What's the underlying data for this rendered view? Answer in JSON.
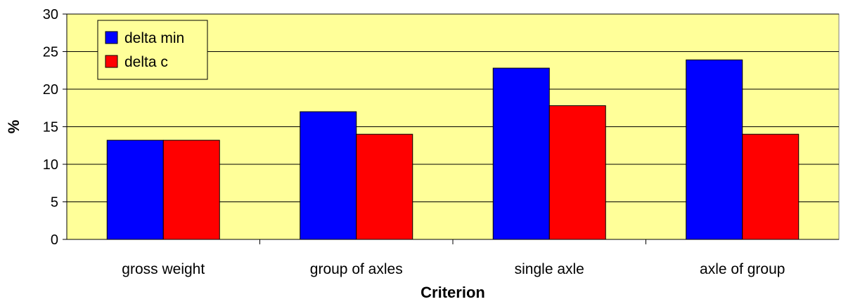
{
  "chart_data": {
    "type": "bar",
    "categories": [
      "gross weight",
      "group of axles",
      "single axle",
      "axle of group"
    ],
    "series": [
      {
        "name": "delta min",
        "values": [
          13.2,
          17.0,
          22.8,
          23.9
        ],
        "color": "#0000ff"
      },
      {
        "name": "delta c",
        "values": [
          13.2,
          14.0,
          17.8,
          14.0
        ],
        "color": "#ff0000"
      }
    ],
    "title": "",
    "xlabel": "Criterion",
    "ylabel": "%",
    "ylim": [
      0,
      30
    ],
    "yticks": [
      "0",
      "5",
      "10",
      "15",
      "20",
      "25",
      "30"
    ],
    "grid": true,
    "legend_position": "top-left",
    "plot_background": "#ffff99"
  }
}
